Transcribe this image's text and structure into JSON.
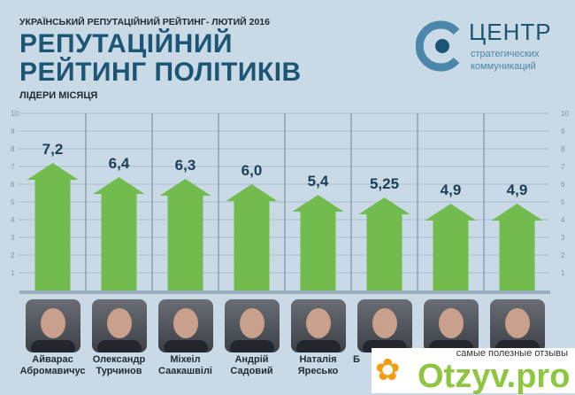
{
  "header": {
    "supertitle": "УКРАЇНСЬКИЙ РЕПУТАЦІЙНИЙ РЕЙТИНГ- ЛЮТИЙ 2016",
    "title_line1": "РЕПУТАЦІЙНИЙ",
    "title_line2": "РЕЙТИНГ ПОЛІТИКІВ",
    "subtitle": "ЛІДЕРИ МІСЯЦЯ"
  },
  "logo": {
    "name": "ЦЕНТР",
    "line2": "стратегических",
    "line3": "коммуникаций"
  },
  "chart_data": {
    "type": "bar",
    "title": "Репутаційний рейтинг політиків",
    "categories": [
      "Айварас Абромавичус",
      "Олександр Турчинов",
      "Міхеіл Саакашвілі",
      "Андрій Садовий",
      "Наталія Яресько",
      "Б",
      "",
      ""
    ],
    "values": [
      7.2,
      6.4,
      6.3,
      6.0,
      5.4,
      5.25,
      4.9,
      4.9
    ],
    "value_labels": [
      "7,2",
      "6,4",
      "6,3",
      "6,0",
      "5,4",
      "5,25",
      "4,9",
      "4,9"
    ],
    "yticks": [
      1,
      2,
      3,
      4,
      5,
      6,
      7,
      8,
      9,
      10
    ],
    "ylim": [
      0,
      10
    ],
    "grid": true,
    "bar_color": "#72bb4e"
  },
  "names": [
    [
      "Айварас",
      "Абромавичус"
    ],
    [
      "Олександр",
      "Турчинов"
    ],
    [
      "Міхеіл",
      "Саакашвілі"
    ],
    [
      "Андрій",
      "Садовий"
    ],
    [
      "Наталія",
      "Яресько"
    ],
    [
      "Б",
      ""
    ]
  ],
  "watermark": {
    "tagline": "самые полезные отзывы",
    "brand": "Otzyv.pro"
  }
}
